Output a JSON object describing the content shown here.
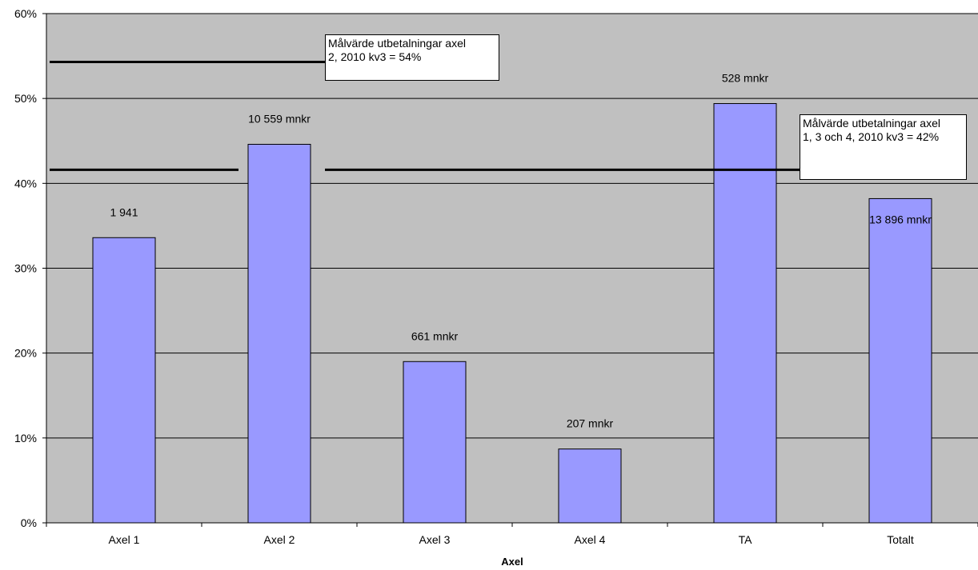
{
  "chart_data": {
    "type": "bar",
    "categories": [
      "Axel 1",
      "Axel 2",
      "Axel 3",
      "Axel 4",
      "TA",
      "Totalt"
    ],
    "values": [
      33.6,
      44.6,
      19.0,
      8.7,
      49.4,
      38.2
    ],
    "data_labels": [
      "1 941",
      "10 559 mnkr",
      "661 mnkr",
      "207 mnkr",
      "528 mnkr",
      "13 896 mnkr"
    ],
    "title": "",
    "xlabel": "Axel",
    "ylabel": "",
    "ylim": [
      0,
      60
    ],
    "yticks": [
      0,
      10,
      20,
      30,
      40,
      50,
      60
    ],
    "ytick_labels": [
      "0%",
      "10%",
      "20%",
      "30%",
      "40%",
      "50%",
      "60%"
    ],
    "grid": true,
    "bar_color": "#9999ff",
    "plot_background": "#c0c0c0",
    "reference_lines": [
      {
        "value": 54.3,
        "text": "Målvärde utbetalningar axel 2, 2010 kv3 = 54%"
      },
      {
        "value": 41.6,
        "text": "Målvärde utbetalningar axel 1, 3 och 4,  2010 kv3 = 42%"
      }
    ]
  },
  "annotations": {
    "note_axel2_line1": "Målvärde utbetalningar axel",
    "note_axel2_line2": "2, 2010 kv3 = 54%",
    "note_axel134_line1": "Målvärde utbetalningar axel",
    "note_axel134_line2": "1, 3 och 4,  2010 kv3 = 42%"
  }
}
